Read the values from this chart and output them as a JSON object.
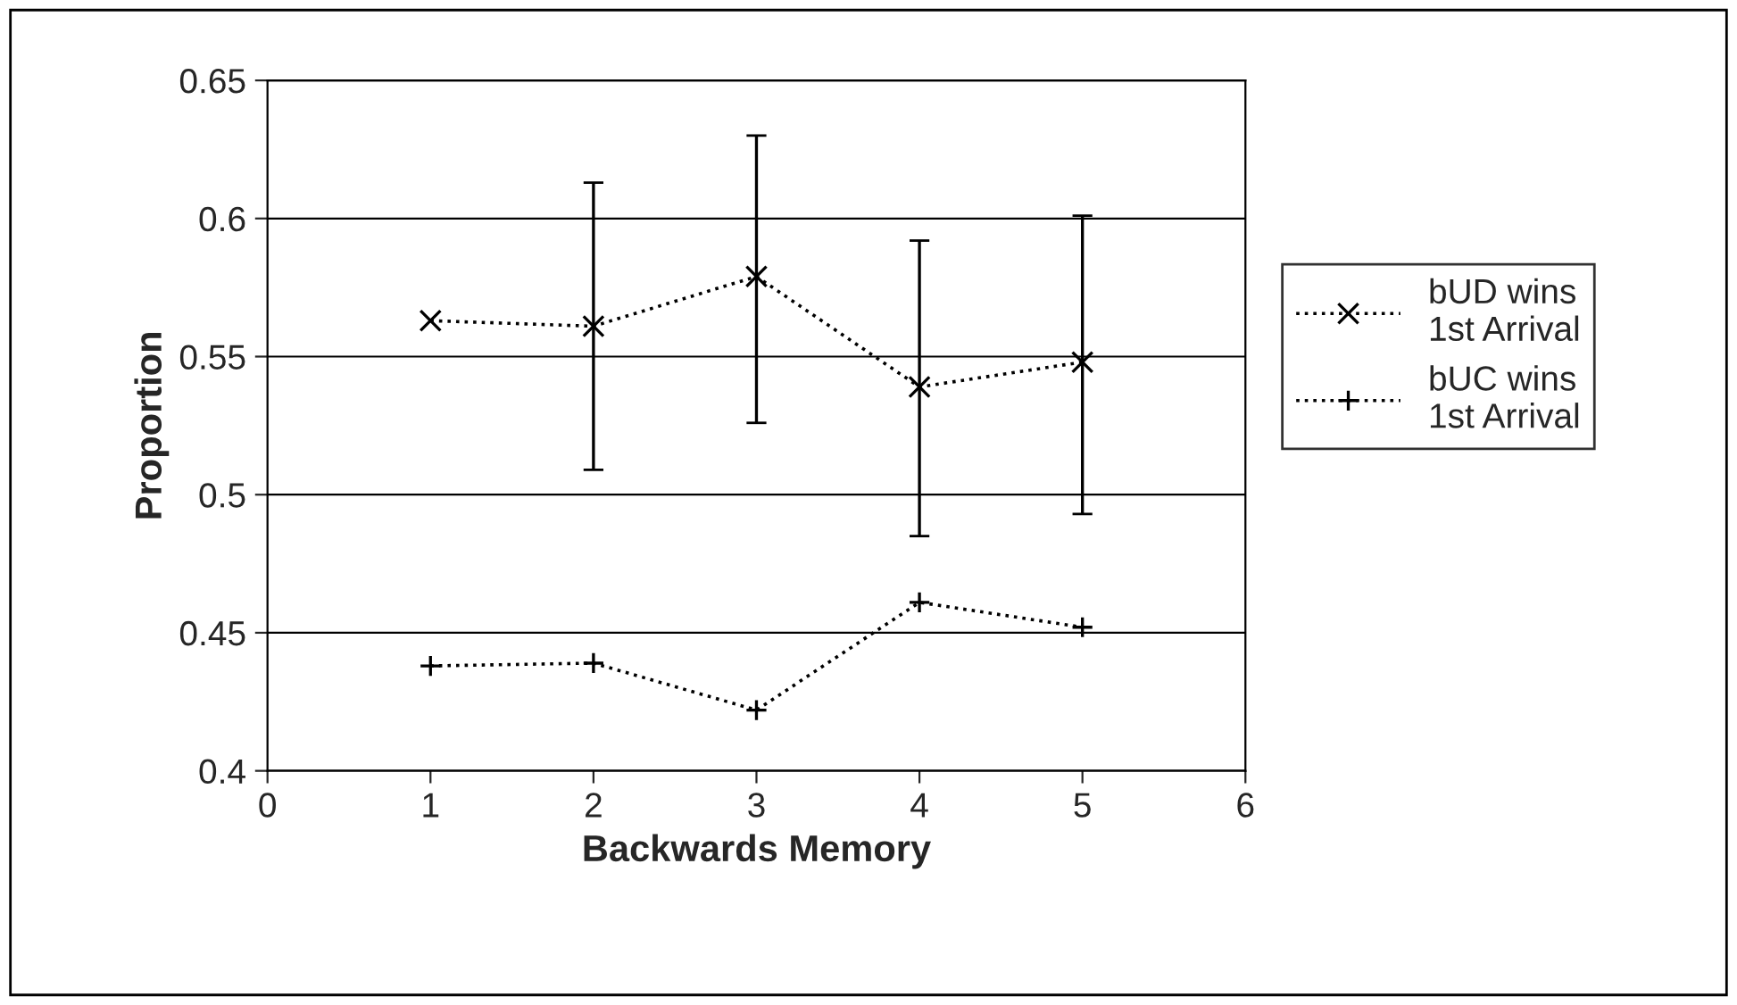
{
  "chart_data": {
    "type": "line",
    "xlabel": "Backwards Memory",
    "ylabel": "Proportion",
    "x": [
      1,
      2,
      3,
      4,
      5
    ],
    "series": [
      {
        "name": "bUD wins\n1st Arrival",
        "color": "#000000",
        "marker": "cross",
        "line_style": "dotted",
        "values": [
          0.563,
          0.561,
          0.579,
          0.539,
          0.548
        ],
        "errors": [
          null,
          [
            0.509,
            0.613
          ],
          [
            0.526,
            0.63
          ],
          [
            0.485,
            0.592
          ],
          [
            0.493,
            0.601
          ]
        ]
      },
      {
        "name": "bUC wins\n1st Arrival",
        "color": "#000000",
        "marker": "plus",
        "line_style": "dotted",
        "values": [
          0.438,
          0.439,
          0.422,
          0.461,
          0.452
        ]
      }
    ],
    "xlim": [
      0,
      6
    ],
    "xticks": [
      0,
      1,
      2,
      3,
      4,
      5,
      6
    ],
    "ylim": [
      0.4,
      0.65
    ],
    "yticks": [
      0.4,
      0.45,
      0.5,
      0.55,
      0.6,
      0.65
    ],
    "grid": "y",
    "legend": "right"
  }
}
